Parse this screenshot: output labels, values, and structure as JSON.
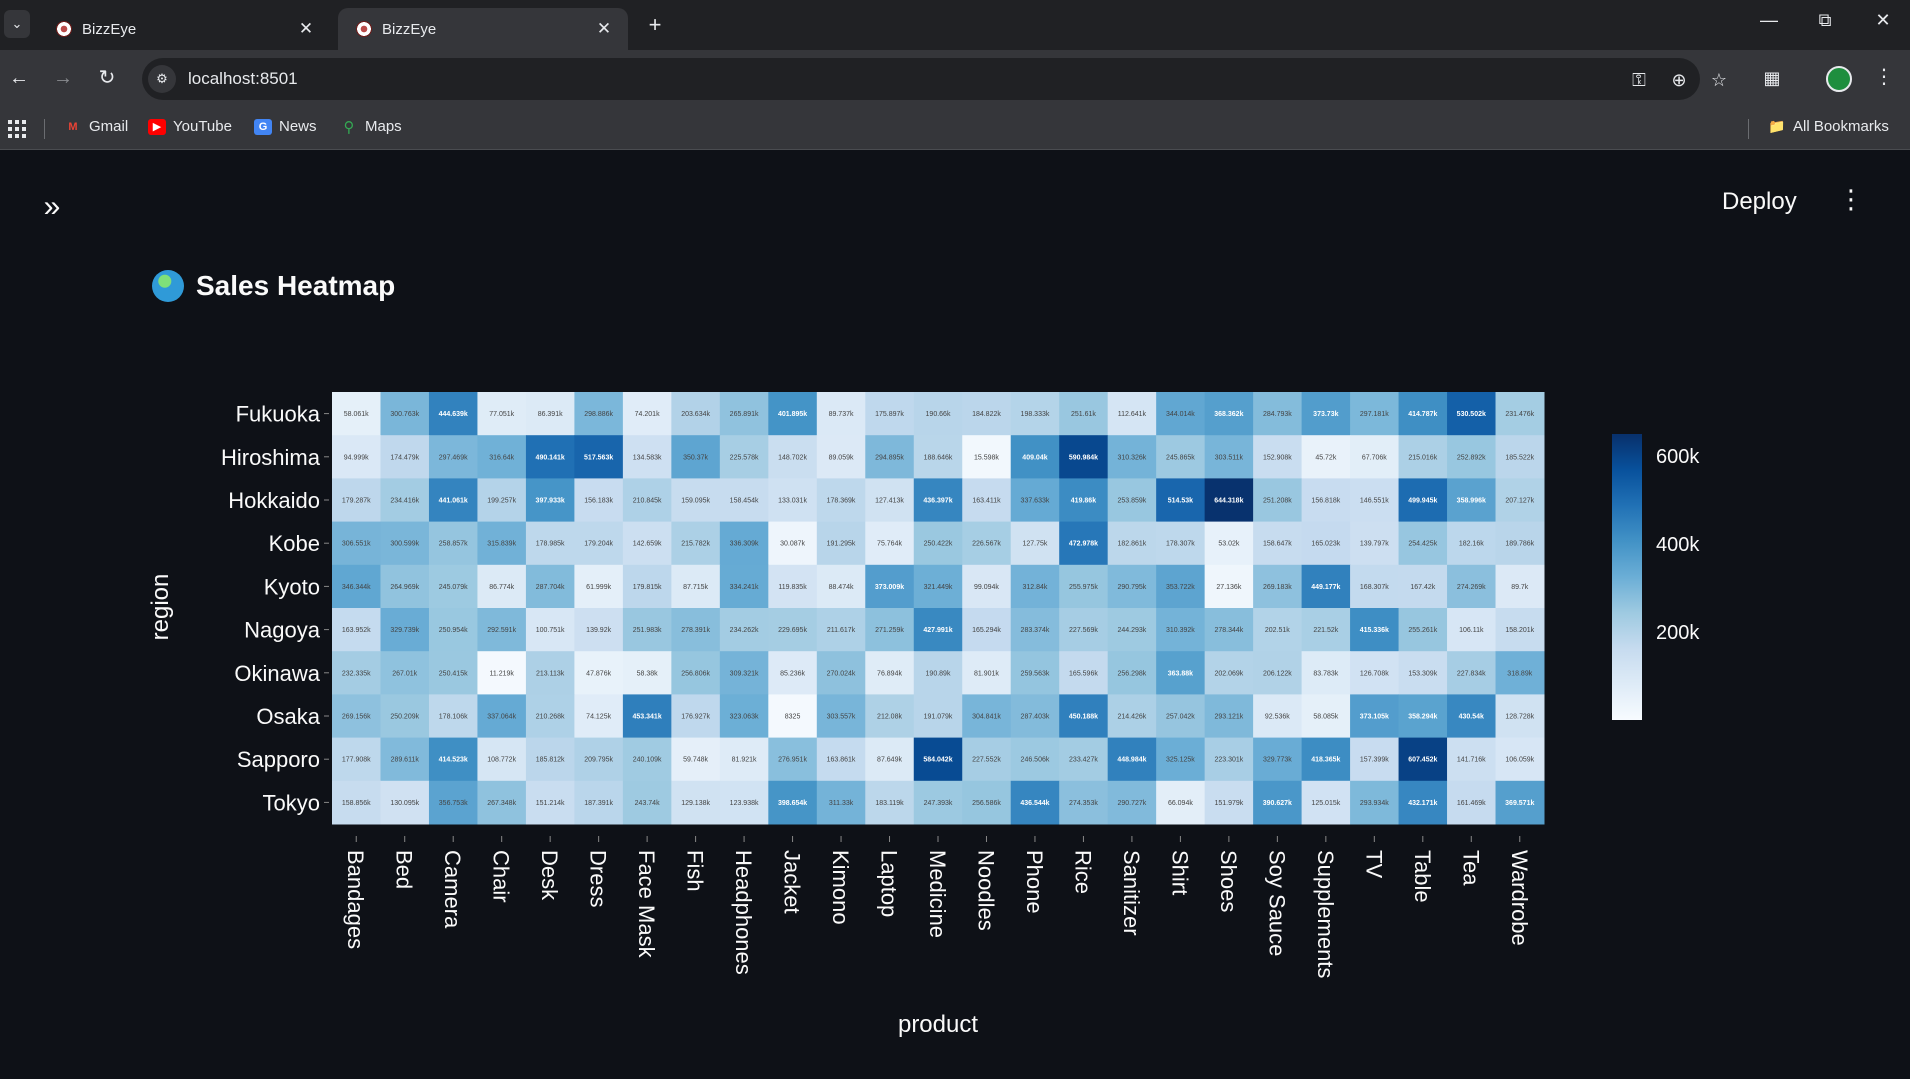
{
  "browser": {
    "tabs": [
      {
        "title": "BizzEye",
        "active": false
      },
      {
        "title": "BizzEye",
        "active": true
      }
    ],
    "url": "localhost:8501",
    "bookmarks": [
      {
        "label": "Gmail",
        "icon": "gmail-icon"
      },
      {
        "label": "YouTube",
        "icon": "youtube-icon"
      },
      {
        "label": "News",
        "icon": "news-icon"
      },
      {
        "label": "Maps",
        "icon": "maps-icon"
      }
    ],
    "all_bookmarks_label": "All Bookmarks"
  },
  "app": {
    "deploy_label": "Deploy",
    "page_title": "Sales Heatmap"
  },
  "colors": {
    "app_background": "#0e1117",
    "scale_low": "#f7fbff",
    "scale_high": "#08306b"
  },
  "chart_data": {
    "type": "heatmap",
    "title": "",
    "xlabel": "product",
    "ylabel": "region",
    "x": [
      "Bandages",
      "Bed",
      "Camera",
      "Chair",
      "Desk",
      "Dress",
      "Face Mask",
      "Fish",
      "Headphones",
      "Jacket",
      "Kimono",
      "Laptop",
      "Medicine",
      "Noodles",
      "Phone",
      "Rice",
      "Sanitizer",
      "Shirt",
      "Shoes",
      "Soy Sauce",
      "Supplements",
      "TV",
      "Table",
      "Tea",
      "Wardrobe"
    ],
    "y": [
      "Fukuoka",
      "Hiroshima",
      "Hokkaido",
      "Kobe",
      "Kyoto",
      "Nagoya",
      "Okinawa",
      "Osaka",
      "Sapporo",
      "Tokyo"
    ],
    "cell_labels": [
      [
        "58.061k",
        "300.763k",
        "444.639k",
        "77.051k",
        "86.391k",
        "298.886k",
        "74.201k",
        "203.634k",
        "265.891k",
        "401.895k",
        "89.737k",
        "175.897k",
        "190.66k",
        "184.822k",
        "198.333k",
        "251.61k",
        "112.641k",
        "344.014k",
        "368.362k",
        "284.793k",
        "373.73k",
        "297.181k",
        "414.787k",
        "530.502k",
        "231.476k"
      ],
      [
        "94.999k",
        "174.479k",
        "297.469k",
        "316.64k",
        "490.141k",
        "517.563k",
        "134.583k",
        "350.37k",
        "225.578k",
        "148.702k",
        "89.059k",
        "294.895k",
        "188.646k",
        "15.598k",
        "409.04k",
        "590.984k",
        "310.326k",
        "245.865k",
        "303.511k",
        "152.908k",
        "45.72k",
        "67.706k",
        "215.016k",
        "252.892k",
        "185.522k"
      ],
      [
        "179.287k",
        "234.416k",
        "441.061k",
        "199.257k",
        "397.933k",
        "156.183k",
        "210.845k",
        "159.095k",
        "158.454k",
        "133.031k",
        "178.369k",
        "127.413k",
        "436.397k",
        "163.411k",
        "337.633k",
        "419.86k",
        "253.859k",
        "514.53k",
        "644.318k",
        "251.208k",
        "156.818k",
        "146.551k",
        "499.945k",
        "358.996k",
        "207.127k"
      ],
      [
        "306.551k",
        "300.599k",
        "258.857k",
        "315.839k",
        "178.985k",
        "179.204k",
        "142.659k",
        "215.782k",
        "336.309k",
        "30.087k",
        "191.295k",
        "75.764k",
        "250.422k",
        "226.567k",
        "127.75k",
        "472.978k",
        "182.861k",
        "178.307k",
        "53.02k",
        "158.647k",
        "165.023k",
        "139.797k",
        "254.425k",
        "182.16k",
        "189.786k"
      ],
      [
        "346.344k",
        "264.969k",
        "245.079k",
        "86.774k",
        "287.704k",
        "61.999k",
        "179.815k",
        "87.715k",
        "334.241k",
        "119.835k",
        "88.474k",
        "373.009k",
        "321.449k",
        "99.094k",
        "312.84k",
        "255.975k",
        "290.795k",
        "353.722k",
        "27.136k",
        "269.183k",
        "449.177k",
        "168.307k",
        "167.42k",
        "274.269k",
        "89.7k"
      ],
      [
        "163.952k",
        "329.739k",
        "250.954k",
        "292.591k",
        "100.751k",
        "139.92k",
        "251.983k",
        "278.391k",
        "234.262k",
        "229.695k",
        "211.617k",
        "271.259k",
        "427.991k",
        "165.294k",
        "283.374k",
        "227.569k",
        "244.293k",
        "310.392k",
        "278.344k",
        "202.51k",
        "221.52k",
        "415.336k",
        "255.261k",
        "106.11k",
        "158.201k"
      ],
      [
        "232.335k",
        "267.01k",
        "250.415k",
        "11.219k",
        "213.113k",
        "47.876k",
        "58.38k",
        "256.806k",
        "309.321k",
        "85.236k",
        "270.024k",
        "76.894k",
        "190.89k",
        "81.901k",
        "259.563k",
        "165.596k",
        "256.298k",
        "363.88k",
        "202.069k",
        "206.122k",
        "83.783k",
        "126.708k",
        "153.309k",
        "227.834k",
        "318.89k"
      ],
      [
        "269.156k",
        "250.209k",
        "178.106k",
        "337.064k",
        "210.268k",
        "74.125k",
        "453.341k",
        "176.927k",
        "323.063k",
        "8325",
        "303.557k",
        "212.08k",
        "191.079k",
        "304.841k",
        "287.403k",
        "450.188k",
        "214.426k",
        "257.042k",
        "293.121k",
        "92.536k",
        "58.085k",
        "373.105k",
        "358.294k",
        "430.54k",
        "128.728k"
      ],
      [
        "177.908k",
        "289.611k",
        "414.523k",
        "108.772k",
        "185.812k",
        "209.795k",
        "240.109k",
        "59.748k",
        "81.921k",
        "276.951k",
        "163.861k",
        "87.649k",
        "584.042k",
        "227.552k",
        "246.506k",
        "233.427k",
        "448.984k",
        "325.125k",
        "223.301k",
        "329.773k",
        "418.365k",
        "157.399k",
        "607.452k",
        "141.716k",
        "106.059k"
      ],
      [
        "158.856k",
        "130.095k",
        "356.753k",
        "267.348k",
        "151.214k",
        "187.391k",
        "243.74k",
        "129.138k",
        "123.938k",
        "398.654k",
        "311.33k",
        "183.119k",
        "247.393k",
        "256.586k",
        "436.544k",
        "274.353k",
        "290.727k",
        "66.094k",
        "151.979k",
        "390.627k",
        "125.015k",
        "293.934k",
        "432.171k",
        "161.469k",
        "369.571k"
      ]
    ],
    "colorbar": {
      "min": 0,
      "max": 650000,
      "ticks": [
        "200k",
        "400k",
        "600k"
      ],
      "tick_values": [
        200000,
        400000,
        600000
      ]
    }
  }
}
